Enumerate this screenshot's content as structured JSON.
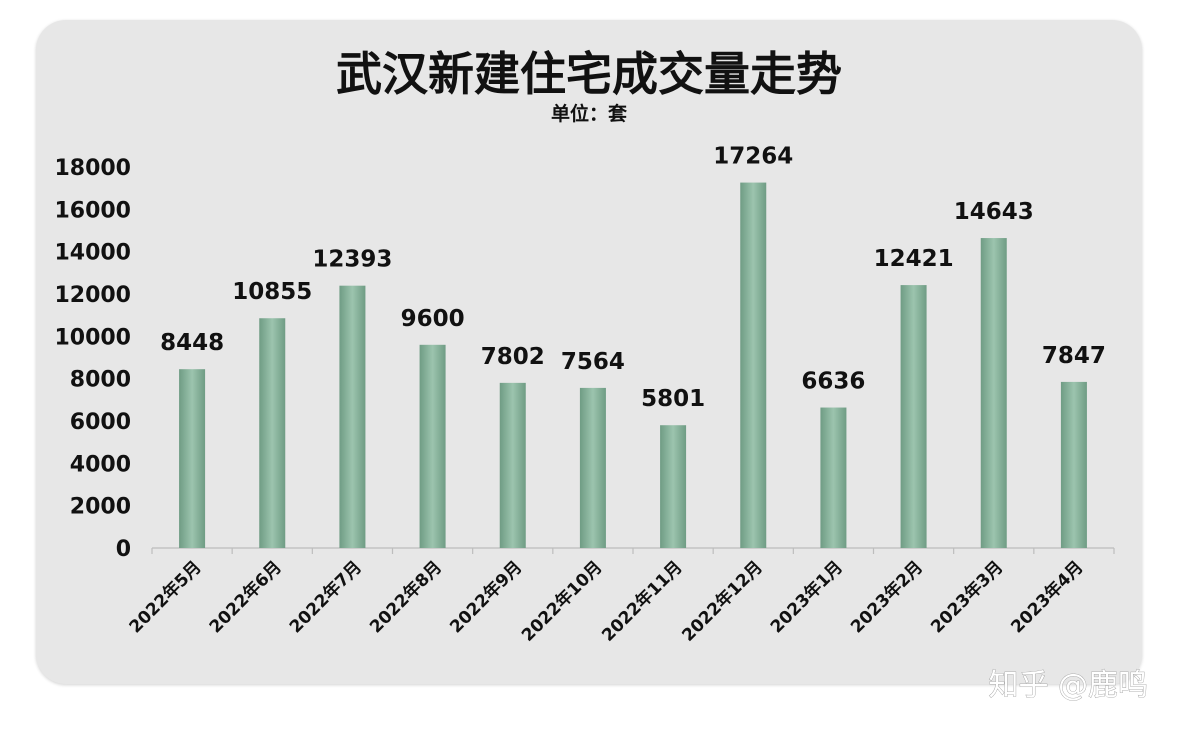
{
  "chart_data": {
    "type": "bar",
    "title": "武汉新建住宅成交量走势",
    "subtitle": "单位：套",
    "categories": [
      "2022年5月",
      "2022年6月",
      "2022年7月",
      "2022年8月",
      "2022年9月",
      "2022年10月",
      "2022年11月",
      "2022年12月",
      "2023年1月",
      "2023年2月",
      "2023年3月",
      "2023年4月"
    ],
    "values": [
      8448,
      10855,
      12393,
      9600,
      7802,
      7564,
      5801,
      17264,
      6636,
      12421,
      14643,
      7847
    ],
    "ylim": [
      0,
      18000
    ],
    "yticks": [
      "0",
      "2000",
      "4000",
      "6000",
      "8000",
      "10000",
      "12000",
      "14000",
      "16000",
      "18000"
    ],
    "xlabel": "",
    "ylabel": "",
    "grid": false,
    "legend": "none",
    "data_labels": true,
    "bar_color": "#86b09a",
    "bar_color_dark": "#6e9a83"
  },
  "watermark": "知乎 @鹿鸣"
}
